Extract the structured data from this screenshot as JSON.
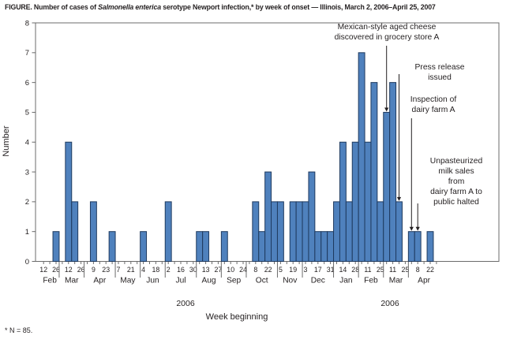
{
  "title": {
    "prefix": "FIGURE. Number of cases of ",
    "italic": "Salmonella enterica",
    "suffix": " serotype Newport infection,* by week of onset — Illinois, March 2, 2006–April 25, 2007"
  },
  "footnote": "* N = 85.",
  "chart_data": {
    "type": "bar",
    "title": "FIGURE. Number of cases of Salmonella enterica serotype Newport infection,* by week of onset — Illinois, March 2, 2006–April 25, 2007",
    "ylabel": "Number",
    "xlabel": "Week beginning",
    "ylim": [
      0,
      8
    ],
    "yticks": [
      0,
      1,
      2,
      3,
      4,
      5,
      6,
      7,
      8
    ],
    "grid": false,
    "n_total": 85,
    "bar_color": "#4F81BD",
    "bar_border_color": "#1F3A5F",
    "axis_color": "#6b6b6b",
    "year_labels": [
      "2006",
      "2006"
    ],
    "week_tick_labels": [
      "12",
      "",
      "26",
      "",
      "12",
      "",
      "26",
      "",
      "9",
      "",
      "23",
      "",
      "7",
      "",
      "21",
      "",
      "4",
      "",
      "18",
      "",
      "2",
      "",
      "16",
      "",
      "30",
      "",
      "13",
      "",
      "27",
      "",
      "10",
      "",
      "24",
      "",
      "8",
      "",
      "22",
      "",
      "5",
      "",
      "19",
      "",
      "3",
      "",
      "17",
      "",
      "31",
      "",
      "14",
      "",
      "28",
      "",
      "11",
      "",
      "25",
      "",
      "11",
      "",
      "25",
      "",
      "8",
      "",
      "22",
      ""
    ],
    "values": [
      0,
      0,
      1,
      0,
      4,
      2,
      0,
      0,
      2,
      0,
      0,
      1,
      0,
      0,
      0,
      0,
      1,
      0,
      0,
      0,
      2,
      0,
      0,
      0,
      0,
      1,
      1,
      0,
      0,
      1,
      0,
      0,
      0,
      0,
      2,
      1,
      3,
      2,
      2,
      0,
      2,
      2,
      2,
      3,
      1,
      1,
      1,
      2,
      4,
      2,
      4,
      7,
      4,
      6,
      2,
      5,
      6,
      2,
      0,
      1,
      1,
      0,
      1,
      0
    ],
    "months": [
      {
        "name": "Feb",
        "weeks": 3
      },
      {
        "name": "Mar",
        "weeks": 4
      },
      {
        "name": "Apr",
        "weeks": 5
      },
      {
        "name": "May",
        "weeks": 4
      },
      {
        "name": "Jun",
        "weeks": 4
      },
      {
        "name": "Jul",
        "weeks": 5
      },
      {
        "name": "Aug",
        "weeks": 4
      },
      {
        "name": "Sep",
        "weeks": 4
      },
      {
        "name": "Oct",
        "weeks": 5
      },
      {
        "name": "Nov",
        "weeks": 4
      },
      {
        "name": "Dec",
        "weeks": 5
      },
      {
        "name": "Jan",
        "weeks": 4
      },
      {
        "name": "Feb",
        "weeks": 4
      },
      {
        "name": "Mar",
        "weeks": 4
      },
      {
        "name": "Apr",
        "weeks": 5
      }
    ],
    "annotations": [
      {
        "text": "Mexican-style aged cheese\ndiscovered in grocery store A",
        "target_week_slot": 55,
        "bar_value": 5
      },
      {
        "text": "Press release issued",
        "target_week_slot": 57,
        "bar_value": 2
      },
      {
        "text": "Inspection of\ndairy farm A",
        "target_week_slot": 59,
        "bar_value": 1
      },
      {
        "text": "Unpasteurized\nmilk sales from\ndairy farm A to\npublic halted",
        "target_week_slot": 60,
        "bar_value": 1
      }
    ]
  }
}
